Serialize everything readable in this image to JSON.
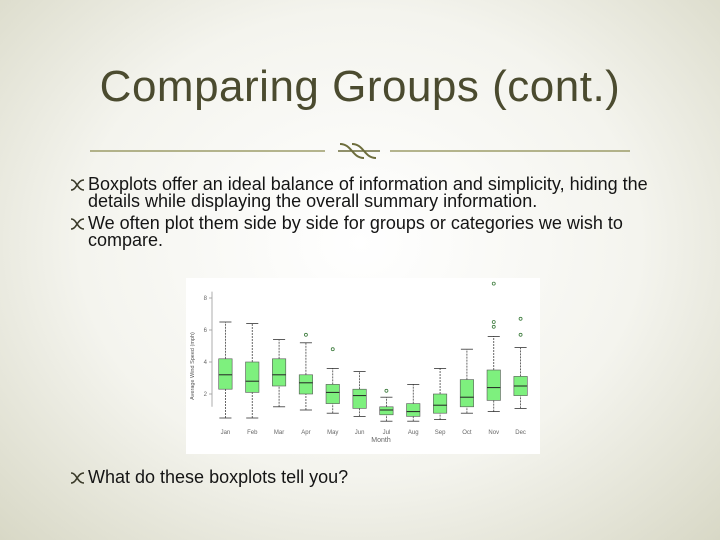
{
  "slide": {
    "title": "Comparing Groups (cont.)",
    "divider_icon": "double-curl-icon",
    "bullet_icon": "curl-bullet-icon",
    "bullets": [
      "Boxplots offer an ideal balance of information and simplicity, hiding the details while displaying the overall summary information.",
      "We often plot them side by side for groups or categories we wish to compare."
    ],
    "bottom_bullet": "What do these boxplots tell you?",
    "colors": {
      "title": "#4b4b2f",
      "accent": "#8a8a4e",
      "box_fill": "#7ef07e"
    }
  },
  "chart_data": {
    "type": "boxplot",
    "title": "",
    "xlabel": "Month",
    "ylabel": "Average Wind Speed (mph)",
    "ylim": [
      0,
      9
    ],
    "yticks": [
      2,
      4,
      6,
      8
    ],
    "categories": [
      "Jan",
      "Feb",
      "Mar",
      "Apr",
      "May",
      "Jun",
      "Jul",
      "Aug",
      "Sep",
      "Oct",
      "Nov",
      "Dec"
    ],
    "boxes": [
      {
        "whisker_low": 0.5,
        "q1": 2.3,
        "median": 3.2,
        "q3": 4.2,
        "whisker_high": 6.5,
        "outliers": []
      },
      {
        "whisker_low": 0.5,
        "q1": 2.1,
        "median": 2.8,
        "q3": 4.0,
        "whisker_high": 6.4,
        "outliers": []
      },
      {
        "whisker_low": 1.2,
        "q1": 2.5,
        "median": 3.2,
        "q3": 4.2,
        "whisker_high": 5.4,
        "outliers": []
      },
      {
        "whisker_low": 1.0,
        "q1": 2.0,
        "median": 2.7,
        "q3": 3.2,
        "whisker_high": 5.2,
        "outliers": [
          5.7
        ]
      },
      {
        "whisker_low": 0.8,
        "q1": 1.4,
        "median": 2.1,
        "q3": 2.6,
        "whisker_high": 3.6,
        "outliers": [
          4.8
        ]
      },
      {
        "whisker_low": 0.6,
        "q1": 1.1,
        "median": 1.9,
        "q3": 2.3,
        "whisker_high": 3.4,
        "outliers": []
      },
      {
        "whisker_low": 0.3,
        "q1": 0.7,
        "median": 1.0,
        "q3": 1.2,
        "whisker_high": 1.8,
        "outliers": [
          2.2
        ]
      },
      {
        "whisker_low": 0.3,
        "q1": 0.6,
        "median": 0.9,
        "q3": 1.4,
        "whisker_high": 2.6,
        "outliers": []
      },
      {
        "whisker_low": 0.4,
        "q1": 0.8,
        "median": 1.3,
        "q3": 2.0,
        "whisker_high": 3.6,
        "outliers": []
      },
      {
        "whisker_low": 0.8,
        "q1": 1.2,
        "median": 1.8,
        "q3": 2.9,
        "whisker_high": 4.8,
        "outliers": []
      },
      {
        "whisker_low": 0.9,
        "q1": 1.6,
        "median": 2.4,
        "q3": 3.5,
        "whisker_high": 5.6,
        "outliers": [
          6.2,
          6.5,
          8.9
        ]
      },
      {
        "whisker_low": 1.1,
        "q1": 1.9,
        "median": 2.5,
        "q3": 3.1,
        "whisker_high": 4.9,
        "outliers": [
          5.7,
          6.7
        ]
      }
    ]
  }
}
